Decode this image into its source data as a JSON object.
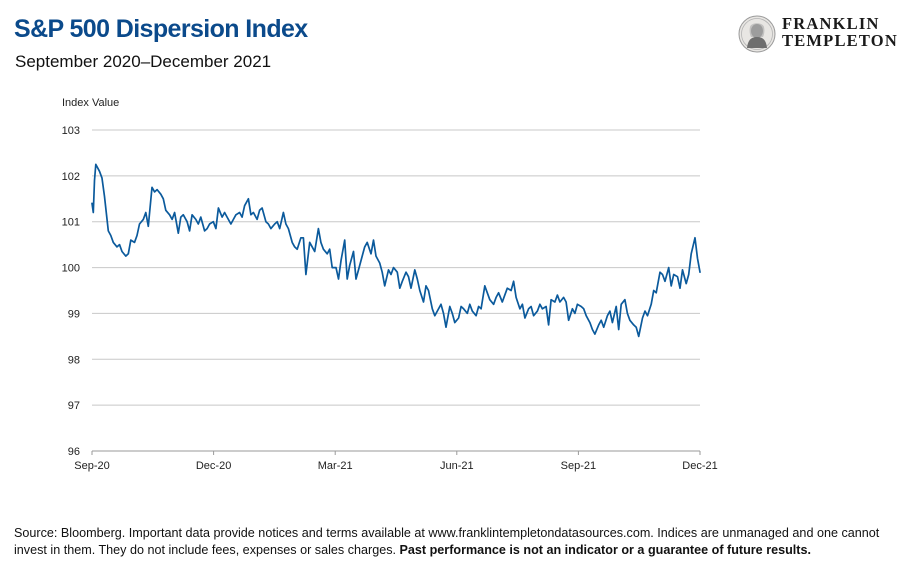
{
  "header": {
    "title": "S&P 500 Dispersion Index",
    "subtitle": "September 2020–December 2021"
  },
  "logo": {
    "line1": "FRANKLIN",
    "line2": "TEMPLETON",
    "icon": "franklin-portrait-seal-icon"
  },
  "footer": {
    "source_text": "Source: Bloomberg. Important data provide notices and terms available at www.franklintempletondatasources.com. Indices are unmanaged and one cannot invest in them. They do not include fees, expenses or sales charges.",
    "disclaimer_bold": "Past performance is not an indicator or a guarantee of future results."
  },
  "colors": {
    "title": "#0b4a8b",
    "line": "#0b5a9c",
    "grid": "#c8c8c8"
  },
  "chart_data": {
    "type": "line",
    "title": "S&P 500 Dispersion Index",
    "subtitle": "September 2020–December 2021",
    "ylabel": "Index Value",
    "xlabel": "",
    "ylim": [
      96,
      103
    ],
    "yticks": [
      96,
      97,
      98,
      99,
      100,
      101,
      102,
      103
    ],
    "xticks": [
      "Sep-20",
      "Dec-20",
      "Mar-21",
      "Jun-21",
      "Sep-21",
      "Dec-21"
    ],
    "x_range": [
      "2020-09-01",
      "2021-12-31"
    ],
    "grid": "horizontal",
    "legend": "none",
    "series": [
      {
        "x": [
          "2020-09-01",
          "2020-09-02",
          "2020-09-03",
          "2020-09-04",
          "2020-09-07",
          "2020-09-09",
          "2020-09-11",
          "2020-09-14",
          "2020-09-16",
          "2020-09-18",
          "2020-09-21",
          "2020-09-23",
          "2020-09-25",
          "2020-09-28",
          "2020-09-30",
          "2020-10-02",
          "2020-10-05",
          "2020-10-07",
          "2020-10-09",
          "2020-10-12",
          "2020-10-14",
          "2020-10-16",
          "2020-10-19",
          "2020-10-21",
          "2020-10-23",
          "2020-10-26",
          "2020-10-28",
          "2020-10-30",
          "2020-11-02",
          "2020-11-04",
          "2020-11-06",
          "2020-11-09",
          "2020-11-11",
          "2020-11-13",
          "2020-11-16",
          "2020-11-18",
          "2020-11-20",
          "2020-11-23",
          "2020-11-25",
          "2020-11-27",
          "2020-11-30",
          "2020-12-02",
          "2020-12-04",
          "2020-12-07",
          "2020-12-09",
          "2020-12-11",
          "2020-12-14",
          "2020-12-16",
          "2020-12-18",
          "2020-12-21",
          "2020-12-23",
          "2020-12-25",
          "2020-12-28",
          "2020-12-30",
          "2021-01-01",
          "2021-01-04",
          "2021-01-06",
          "2021-01-08",
          "2021-01-11",
          "2021-01-13",
          "2021-01-15",
          "2021-01-18",
          "2021-01-20",
          "2021-01-22",
          "2021-01-25",
          "2021-01-27",
          "2021-01-29",
          "2021-02-01",
          "2021-02-03",
          "2021-02-05",
          "2021-02-08",
          "2021-02-10",
          "2021-02-12",
          "2021-02-15",
          "2021-02-17",
          "2021-02-19",
          "2021-02-22",
          "2021-02-24",
          "2021-02-26",
          "2021-03-01",
          "2021-03-03",
          "2021-03-05",
          "2021-03-08",
          "2021-03-10",
          "2021-03-12",
          "2021-03-15",
          "2021-03-17",
          "2021-03-19",
          "2021-03-22",
          "2021-03-24",
          "2021-03-26",
          "2021-03-29",
          "2021-03-31",
          "2021-04-02",
          "2021-04-05",
          "2021-04-07",
          "2021-04-09",
          "2021-04-12",
          "2021-04-14",
          "2021-04-16",
          "2021-04-19",
          "2021-04-21",
          "2021-04-23",
          "2021-04-26",
          "2021-04-28",
          "2021-04-30",
          "2021-05-03",
          "2021-05-05",
          "2021-05-07",
          "2021-05-10",
          "2021-05-12",
          "2021-05-14",
          "2021-05-17",
          "2021-05-19",
          "2021-05-21",
          "2021-05-24",
          "2021-05-26",
          "2021-05-28",
          "2021-05-31",
          "2021-06-02",
          "2021-06-04",
          "2021-06-07",
          "2021-06-09",
          "2021-06-11",
          "2021-06-14",
          "2021-06-16",
          "2021-06-18",
          "2021-06-21",
          "2021-06-23",
          "2021-06-25",
          "2021-06-28",
          "2021-06-30",
          "2021-07-02",
          "2021-07-05",
          "2021-07-07",
          "2021-07-09",
          "2021-07-12",
          "2021-07-14",
          "2021-07-16",
          "2021-07-19",
          "2021-07-21",
          "2021-07-23",
          "2021-07-26",
          "2021-07-28",
          "2021-07-30",
          "2021-08-02",
          "2021-08-04",
          "2021-08-06",
          "2021-08-09",
          "2021-08-11",
          "2021-08-13",
          "2021-08-16",
          "2021-08-18",
          "2021-08-20",
          "2021-08-23",
          "2021-08-25",
          "2021-08-27",
          "2021-08-30",
          "2021-09-01",
          "2021-09-03",
          "2021-09-06",
          "2021-09-08",
          "2021-09-10",
          "2021-09-13",
          "2021-09-15",
          "2021-09-17",
          "2021-09-20",
          "2021-09-22",
          "2021-09-24",
          "2021-09-27",
          "2021-09-29",
          "2021-10-01",
          "2021-10-04",
          "2021-10-06",
          "2021-10-08",
          "2021-10-11",
          "2021-10-13",
          "2021-10-15",
          "2021-10-18",
          "2021-10-20",
          "2021-10-22",
          "2021-10-25",
          "2021-10-27",
          "2021-10-29",
          "2021-11-01",
          "2021-11-03",
          "2021-11-05",
          "2021-11-08",
          "2021-11-10",
          "2021-11-12",
          "2021-11-15",
          "2021-11-17",
          "2021-11-19",
          "2021-11-22",
          "2021-11-24",
          "2021-11-26",
          "2021-11-29",
          "2021-12-01",
          "2021-12-03",
          "2021-12-06",
          "2021-12-08",
          "2021-12-10",
          "2021-12-13",
          "2021-12-15",
          "2021-12-17",
          "2021-12-20",
          "2021-12-22",
          "2021-12-24",
          "2021-12-27",
          "2021-12-29",
          "2021-12-31"
        ],
        "values": [
          101.4,
          101.2,
          101.9,
          102.25,
          102.1,
          101.95,
          101.55,
          100.8,
          100.7,
          100.55,
          100.45,
          100.5,
          100.35,
          100.25,
          100.3,
          100.6,
          100.55,
          100.7,
          100.95,
          101.05,
          101.2,
          100.9,
          101.75,
          101.65,
          101.7,
          101.6,
          101.5,
          101.25,
          101.15,
          101.05,
          101.2,
          100.75,
          101.1,
          101.15,
          101.0,
          100.8,
          101.15,
          101.05,
          100.95,
          101.1,
          100.8,
          100.85,
          100.95,
          101.0,
          100.85,
          101.3,
          101.1,
          101.2,
          101.1,
          100.95,
          101.05,
          101.15,
          101.2,
          101.1,
          101.35,
          101.5,
          101.15,
          101.2,
          101.05,
          101.25,
          101.3,
          101.0,
          100.95,
          100.85,
          100.95,
          101.0,
          100.85,
          101.2,
          100.95,
          100.85,
          100.55,
          100.45,
          100.4,
          100.65,
          100.65,
          99.85,
          100.55,
          100.45,
          100.35,
          100.85,
          100.55,
          100.4,
          100.3,
          100.4,
          100.0,
          100.0,
          99.75,
          100.15,
          100.6,
          99.75,
          100.05,
          100.35,
          99.75,
          99.95,
          100.25,
          100.45,
          100.55,
          100.3,
          100.6,
          100.25,
          100.1,
          99.9,
          99.6,
          99.95,
          99.85,
          100.0,
          99.9,
          99.55,
          99.7,
          99.9,
          99.8,
          99.55,
          99.95,
          99.75,
          99.5,
          99.25,
          99.6,
          99.5,
          99.1,
          98.95,
          99.05,
          99.2,
          99.0,
          98.7,
          99.15,
          99.0,
          98.8,
          98.9,
          99.15,
          99.1,
          99.0,
          99.2,
          99.05,
          98.95,
          99.15,
          99.1,
          99.6,
          99.45,
          99.3,
          99.2,
          99.35,
          99.45,
          99.25,
          99.4,
          99.55,
          99.5,
          99.7,
          99.35,
          99.1,
          99.2,
          98.9,
          99.1,
          99.15,
          98.95,
          99.05,
          99.2,
          99.1,
          99.15,
          98.75,
          99.3,
          99.25,
          99.4,
          99.25,
          99.35,
          99.25,
          98.85,
          99.1,
          99.0,
          99.2,
          99.15,
          99.1,
          98.95,
          98.8,
          98.65,
          98.55,
          98.75,
          98.85,
          98.7,
          98.95,
          99.05,
          98.8,
          99.15,
          98.65,
          99.2,
          99.3,
          99.0,
          98.85,
          98.75,
          98.7,
          98.5,
          98.9,
          99.05,
          98.95,
          99.2,
          99.5,
          99.45,
          99.9,
          99.85,
          99.7,
          100.0,
          99.6,
          99.85,
          99.8,
          99.55,
          99.95,
          99.65,
          99.85,
          100.3,
          100.65,
          100.2,
          99.9
        ]
      }
    ]
  }
}
